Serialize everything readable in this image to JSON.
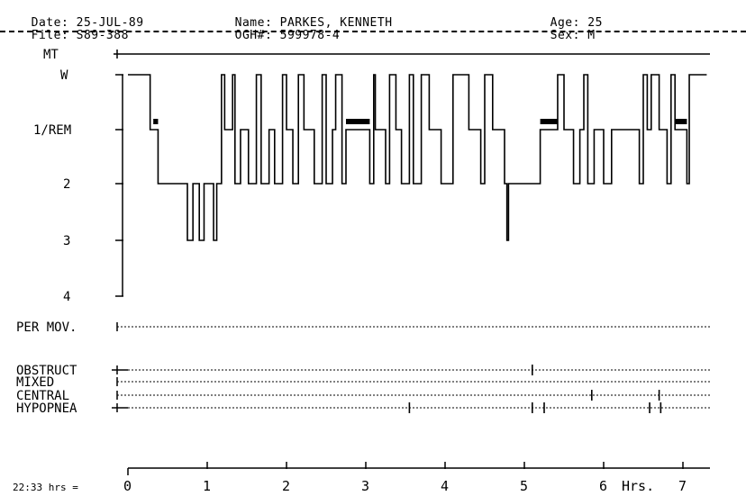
{
  "header": {
    "date_label": "Date:",
    "date_value": "25-JUL-89",
    "file_label": "File:",
    "file_value": "S89-388",
    "name_label": "Name:",
    "name_value": "PARKES, KENNETH",
    "ogh_label": "OGH#:",
    "ogh_value": "599978-4",
    "age_label": "Age:",
    "age_value": "25",
    "sex_label": "Sex:",
    "sex_value": "M"
  },
  "chart_data": {
    "type": "line",
    "title": "",
    "xlabel": "Hrs.",
    "start_label": "22:33 hrs =",
    "x_ticks": [
      "0",
      "1",
      "2",
      "3",
      "4",
      "5",
      "6",
      "7"
    ],
    "xlim": [
      0,
      7.3
    ],
    "stage_levels": [
      "MT",
      "W",
      "1/REM",
      "2",
      "3",
      "4"
    ],
    "hypnogram": [
      [
        0.0,
        "W"
      ],
      [
        0.28,
        "1/REM"
      ],
      [
        0.38,
        "2"
      ],
      [
        0.75,
        "3"
      ],
      [
        0.82,
        "2"
      ],
      [
        0.9,
        "3"
      ],
      [
        0.96,
        "2"
      ],
      [
        1.08,
        "3"
      ],
      [
        1.12,
        "2"
      ],
      [
        1.18,
        "W"
      ],
      [
        1.22,
        "1/REM"
      ],
      [
        1.32,
        "W"
      ],
      [
        1.35,
        "2"
      ],
      [
        1.42,
        "1/REM"
      ],
      [
        1.52,
        "2"
      ],
      [
        1.62,
        "W"
      ],
      [
        1.68,
        "2"
      ],
      [
        1.78,
        "1/REM"
      ],
      [
        1.85,
        "2"
      ],
      [
        1.95,
        "W"
      ],
      [
        2.0,
        "1/REM"
      ],
      [
        2.08,
        "2"
      ],
      [
        2.15,
        "W"
      ],
      [
        2.22,
        "1/REM"
      ],
      [
        2.35,
        "2"
      ],
      [
        2.45,
        "W"
      ],
      [
        2.5,
        "2"
      ],
      [
        2.58,
        "1/REM"
      ],
      [
        2.62,
        "W"
      ],
      [
        2.7,
        "2"
      ],
      [
        2.75,
        "1/REM"
      ],
      [
        3.05,
        "2"
      ],
      [
        3.1,
        "W"
      ],
      [
        3.12,
        "1/REM"
      ],
      [
        3.25,
        "2"
      ],
      [
        3.3,
        "W"
      ],
      [
        3.38,
        "1/REM"
      ],
      [
        3.45,
        "2"
      ],
      [
        3.55,
        "W"
      ],
      [
        3.6,
        "2"
      ],
      [
        3.7,
        "W"
      ],
      [
        3.8,
        "1/REM"
      ],
      [
        3.95,
        "2"
      ],
      [
        4.1,
        "W"
      ],
      [
        4.3,
        "1/REM"
      ],
      [
        4.45,
        "2"
      ],
      [
        4.5,
        "W"
      ],
      [
        4.6,
        "1/REM"
      ],
      [
        4.75,
        "2"
      ],
      [
        4.78,
        "3"
      ],
      [
        4.8,
        "2"
      ],
      [
        5.05,
        "2"
      ],
      [
        5.2,
        "1/REM"
      ],
      [
        5.42,
        "W"
      ],
      [
        5.5,
        "1/REM"
      ],
      [
        5.62,
        "2"
      ],
      [
        5.7,
        "1/REM"
      ],
      [
        5.75,
        "W"
      ],
      [
        5.8,
        "2"
      ],
      [
        5.88,
        "1/REM"
      ],
      [
        6.0,
        "2"
      ],
      [
        6.1,
        "1/REM"
      ],
      [
        6.45,
        "2"
      ],
      [
        6.5,
        "W"
      ],
      [
        6.55,
        "1/REM"
      ],
      [
        6.6,
        "W"
      ],
      [
        6.7,
        "1/REM"
      ],
      [
        6.8,
        "2"
      ],
      [
        6.85,
        "W"
      ],
      [
        6.9,
        "1/REM"
      ],
      [
        7.05,
        "2"
      ],
      [
        7.08,
        "W"
      ],
      [
        7.3,
        "W"
      ]
    ],
    "rem_periods": [
      [
        0.32,
        0.38
      ],
      [
        2.75,
        3.05
      ],
      [
        5.2,
        5.42
      ],
      [
        6.9,
        7.05
      ]
    ],
    "event_channels": [
      {
        "name": "MT",
        "events": []
      },
      {
        "name": "PER MOV.",
        "events": []
      },
      {
        "name": "OBSTRUCT",
        "events": [
          5.1
        ]
      },
      {
        "name": "MIXED",
        "events": []
      },
      {
        "name": "CENTRAL",
        "events": [
          5.85,
          6.7
        ]
      },
      {
        "name": "HYPOPNEA",
        "events": [
          3.55,
          5.1,
          5.25,
          6.58,
          6.72
        ]
      }
    ],
    "grid": false,
    "legend": "none"
  }
}
